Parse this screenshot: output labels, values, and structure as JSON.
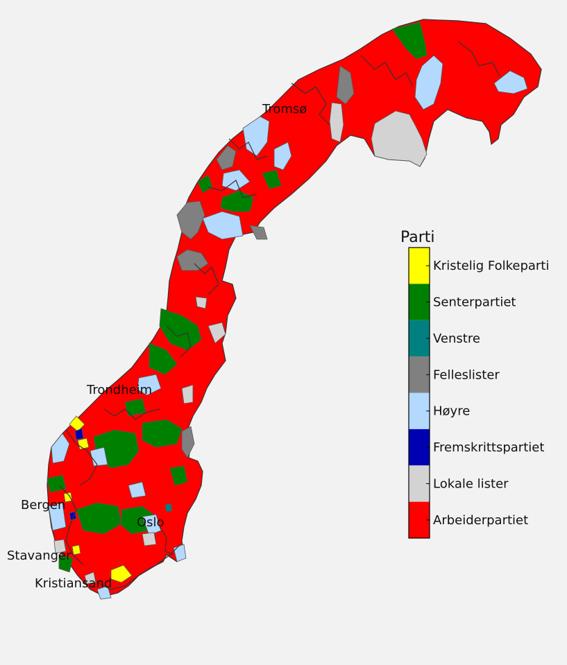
{
  "legend": {
    "title": "Parti",
    "items": [
      {
        "label": "Kristelig Folkeparti",
        "color": "#ffff00"
      },
      {
        "label": "Senterpartiet",
        "color": "#008000"
      },
      {
        "label": "Venstre",
        "color": "#008080"
      },
      {
        "label": "Felleslister",
        "color": "#808080"
      },
      {
        "label": "Høyre",
        "color": "#b3d9ff"
      },
      {
        "label": "Fremskrittspartiet",
        "color": "#0000b3"
      },
      {
        "label": "Lokale lister",
        "color": "#d3d3d3"
      },
      {
        "label": "Arbeiderpartiet",
        "color": "#ff0000"
      }
    ]
  },
  "cities": [
    {
      "name": "Tromsø"
    },
    {
      "name": "Trondheim"
    },
    {
      "name": "Bergen"
    },
    {
      "name": "Oslo"
    },
    {
      "name": "Stavanger"
    },
    {
      "name": "Kristiansand"
    }
  ],
  "colors": {
    "background": "#f2f2f2",
    "border": "#555555",
    "coast": "#333333"
  }
}
